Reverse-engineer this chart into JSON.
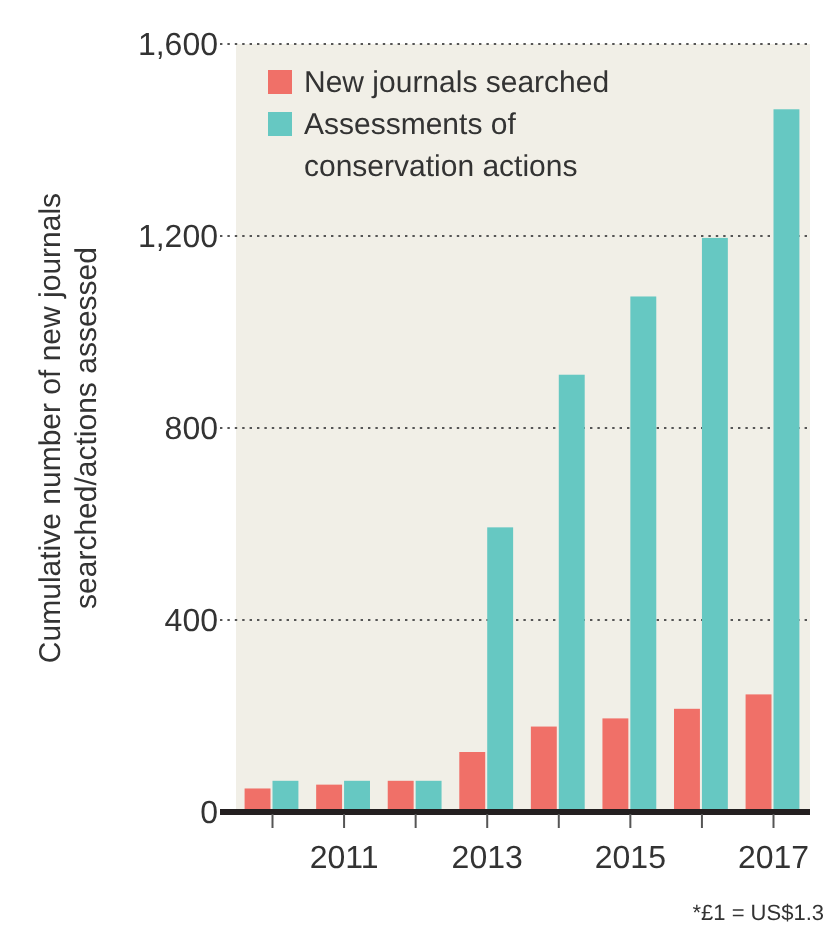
{
  "chart_data": {
    "type": "bar",
    "ylabel": "Cumulative number of new journals searched/actions assessed",
    "categories": [
      null,
      "2011",
      null,
      "2013",
      null,
      "2015",
      null,
      "2017"
    ],
    "series": [
      {
        "name": "New journals searched",
        "color": "#f07068",
        "values": [
          49,
          57,
          65,
          125,
          178,
          195,
          215,
          245
        ]
      },
      {
        "name": "Assessments of conservation actions",
        "color": "#66c8c2",
        "values": [
          65,
          65,
          65,
          593,
          911,
          1074,
          1196,
          1464
        ]
      }
    ],
    "ylim": [
      0,
      1600
    ],
    "yticks": [
      0,
      400,
      800,
      {
        "value": 1200,
        "label": "1,200"
      },
      {
        "value": 1600,
        "label": "1,600"
      }
    ],
    "grid": "y",
    "legend": "top left",
    "annotations": [
      "*£1 = US$1.3"
    ]
  }
}
